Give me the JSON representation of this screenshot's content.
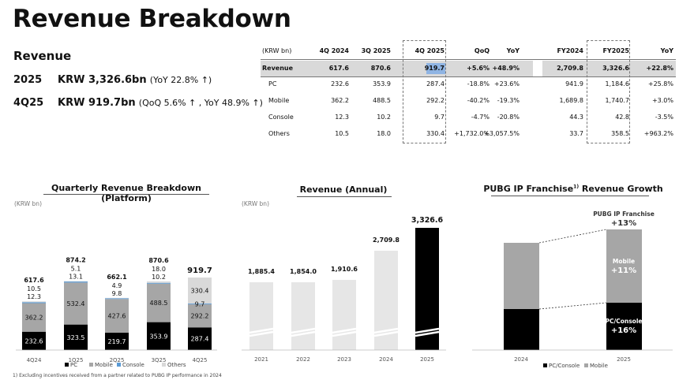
{
  "page": {
    "title": "Revenue Breakdown",
    "section": "Revenue",
    "kpi_2025_period": "2025",
    "kpi_2025_value": "KRW 3,326.6bn",
    "kpi_2025_note": "(YoY 22.8% ↑)",
    "kpi_4q_period": "4Q25",
    "kpi_4q_value": "KRW 919.7bn",
    "kpi_4q_note": "(QoQ 5.6% ↑ , YoY 48.9% ↑)",
    "footnote": "1) Excluding incentives received from a partner related to PUBG IP performance in 2024"
  },
  "table": {
    "headers": [
      "(KRW bn)",
      "4Q 2024",
      "3Q 2025",
      "4Q 2025",
      "QoQ",
      "YoY",
      "FY2024",
      "FY2025",
      "YoY"
    ],
    "rows": [
      [
        "Revenue",
        "617.6",
        "870.6",
        "919.7",
        "+5.6%",
        "+48.9%",
        "2,709.8",
        "3,326.6",
        "+22.8%"
      ],
      [
        "PC",
        "232.6",
        "353.9",
        "287.4",
        "-18.8%",
        "+23.6%",
        "941.9",
        "1,184.6",
        "+25.8%"
      ],
      [
        "Mobile",
        "362.2",
        "488.5",
        "292.2",
        "-40.2%",
        "-19.3%",
        "1,689.8",
        "1,740.7",
        "+3.0%"
      ],
      [
        "Console",
        "12.3",
        "10.2",
        "9.7",
        "-4.7%",
        "-20.8%",
        "44.3",
        "42.8",
        "-3.5%"
      ],
      [
        "Others",
        "10.5",
        "18.0",
        "330.4",
        "+1,732.0%",
        "+3,057.5%",
        "33.7",
        "358.5",
        "+963.2%"
      ]
    ]
  },
  "chart_data": [
    {
      "type": "bar",
      "title": "Quarterly Revenue Breakdown (Platform)",
      "unit_label": "(KRW bn)",
      "stacked": true,
      "categories": [
        "4Q24",
        "1Q25",
        "2Q25",
        "3Q25",
        "4Q25"
      ],
      "totals": [
        617.6,
        874.2,
        662.1,
        870.6,
        919.7
      ],
      "total_labels": [
        "617.6",
        "874.2",
        "662.1",
        "870.6",
        "919.7"
      ],
      "series": [
        {
          "name": "PC",
          "color": "#000000",
          "values": [
            232.6,
            323.5,
            219.7,
            353.9,
            287.4
          ],
          "labels": [
            "232.6",
            "323.5",
            "219.7",
            "353.9",
            "287.4"
          ]
        },
        {
          "name": "Mobile",
          "color": "#a6a6a6",
          "values": [
            362.2,
            532.4,
            427.6,
            488.5,
            292.2
          ],
          "labels": [
            "362.2",
            "532.4",
            "427.6",
            "488.5",
            "292.2"
          ]
        },
        {
          "name": "Console",
          "color": "#5b9bd5",
          "values": [
            12.3,
            13.1,
            9.8,
            10.2,
            9.7
          ],
          "labels": [
            "12.3",
            "13.1",
            "9.8",
            "10.2",
            "9.7"
          ]
        },
        {
          "name": "Others",
          "color": "#d9d9d9",
          "values": [
            10.5,
            5.1,
            4.9,
            18.0,
            330.4
          ],
          "labels": [
            "10.5",
            "5.1",
            "4.9",
            "18.0",
            "330.4"
          ]
        }
      ]
    },
    {
      "type": "bar",
      "title": "Revenue (Annual)",
      "unit_label": "(KRW bn)",
      "categories": [
        "2021",
        "2022",
        "2023",
        "2024",
        "2025"
      ],
      "values": [
        1885.4,
        1854.0,
        1910.6,
        2709.8,
        3326.6
      ],
      "labels": [
        "1,885.4",
        "1,854.0",
        "1,910.6",
        "2,709.8",
        "3,326.6"
      ],
      "axis_break": true
    },
    {
      "type": "bar",
      "title": "PUBG IP Franchise",
      "title_sup": "1)",
      "title_tail": " Revenue Growth",
      "stacked": true,
      "categories": [
        "2024",
        "2025"
      ],
      "series": [
        {
          "name": "PC/Console",
          "color": "#000000",
          "values": [
            0.47,
            0.55
          ]
        },
        {
          "name": "Mobile",
          "color": "#a6a6a6",
          "values": [
            0.53,
            0.58
          ]
        }
      ],
      "annotations": {
        "total_label": "PUBG IP Franchise",
        "total_growth": "+13%",
        "mobile_label": "Mobile",
        "mobile_growth": "+11%",
        "pc_label": "PC/Console",
        "pc_growth": "+16%"
      }
    }
  ]
}
